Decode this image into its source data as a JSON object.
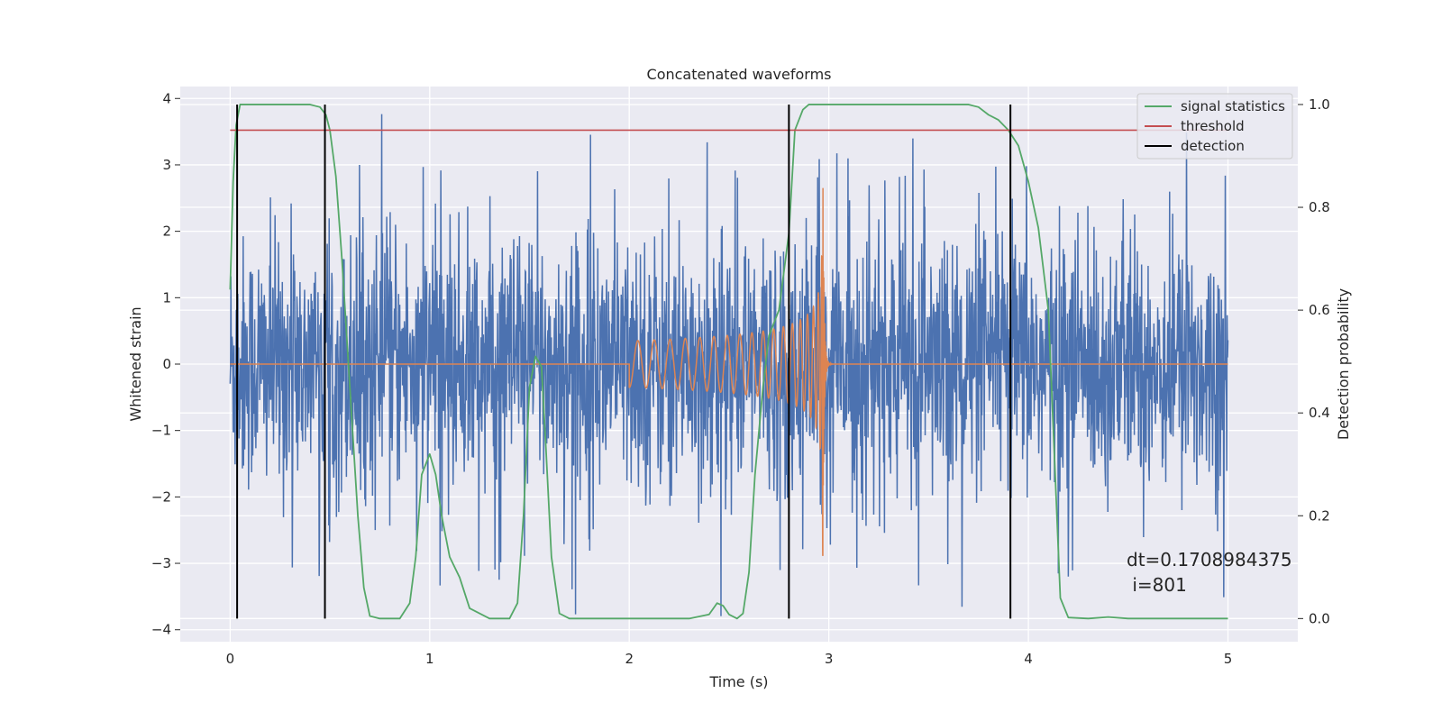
{
  "chart_data": {
    "type": "line",
    "title": "Concatenated waveforms",
    "xlabel": "Time (s)",
    "ylabel": "Whitened strain",
    "y2label": "Detection probability",
    "xlim": [
      -0.25,
      5.35
    ],
    "ylim": [
      -4.18,
      4.18
    ],
    "y2lim": [
      -0.045,
      1.035
    ],
    "xticks": [
      0,
      1,
      2,
      3,
      4,
      5
    ],
    "yticks": [
      -4,
      -3,
      -2,
      -1,
      0,
      1,
      2,
      3,
      4
    ],
    "y2ticks": [
      0.0,
      0.2,
      0.4,
      0.6,
      0.8,
      1.0
    ],
    "y2ticklabels": [
      "0.0",
      "0.2",
      "0.4",
      "0.6",
      "0.8",
      "1.0"
    ],
    "grid": true,
    "legend_position": "top-right",
    "series": [
      {
        "name": "",
        "axis": "left",
        "color": "#4c72b0",
        "kind": "noise",
        "x_range": [
          0,
          5
        ],
        "typical_range": [
          -2.4,
          2.4
        ],
        "max": 3.8,
        "min": -3.85
      },
      {
        "name": "",
        "axis": "left",
        "color": "#dd8452",
        "kind": "chirp",
        "flat_value": 0,
        "chirp_start": 2.0,
        "merger": 2.97,
        "amplitude_start": 0.35,
        "amplitude_max": 3.0
      },
      {
        "name": "signal statistics",
        "axis": "right",
        "color": "#55a868",
        "x": [
          0,
          0.015,
          0.03,
          0.05,
          0.08,
          0.12,
          0.2,
          0.3,
          0.4,
          0.45,
          0.48,
          0.5,
          0.53,
          0.56,
          0.6,
          0.64,
          0.67,
          0.7,
          0.75,
          0.85,
          0.9,
          0.93,
          0.96,
          1.0,
          1.03,
          1.06,
          1.1,
          1.15,
          1.2,
          1.3,
          1.4,
          1.44,
          1.47,
          1.5,
          1.53,
          1.56,
          1.58,
          1.61,
          1.65,
          1.7,
          1.8,
          2.0,
          2.3,
          2.4,
          2.44,
          2.47,
          2.5,
          2.54,
          2.57,
          2.6,
          2.63,
          2.67,
          2.7,
          2.75,
          2.8,
          2.83,
          2.87,
          2.9,
          3.0,
          3.5,
          3.7,
          3.75,
          3.8,
          3.85,
          3.9,
          3.95,
          4.0,
          4.05,
          4.1,
          4.13,
          4.16,
          4.2,
          4.3,
          4.4,
          4.5,
          5.0
        ],
        "y": [
          0.64,
          0.85,
          0.96,
          1.0,
          1.0,
          1.0,
          1.0,
          1.0,
          1.0,
          0.995,
          0.98,
          0.95,
          0.86,
          0.7,
          0.45,
          0.2,
          0.06,
          0.005,
          0.0,
          0.0,
          0.03,
          0.12,
          0.28,
          0.32,
          0.28,
          0.2,
          0.12,
          0.08,
          0.02,
          0.0,
          0.0,
          0.03,
          0.2,
          0.45,
          0.51,
          0.49,
          0.35,
          0.12,
          0.01,
          0.0,
          0.0,
          0.0,
          0.0,
          0.008,
          0.03,
          0.025,
          0.008,
          0.0,
          0.01,
          0.09,
          0.28,
          0.45,
          0.55,
          0.6,
          0.75,
          0.95,
          0.99,
          1.0,
          1.0,
          1.0,
          1.0,
          0.995,
          0.98,
          0.97,
          0.95,
          0.92,
          0.85,
          0.76,
          0.6,
          0.32,
          0.04,
          0.002,
          0.0,
          0.003,
          0.0,
          0.0
        ]
      },
      {
        "name": "threshold",
        "axis": "right",
        "color": "#c44e52",
        "x": [
          0,
          5
        ],
        "y": [
          0.95,
          0.95
        ]
      },
      {
        "name": "detection",
        "axis": "right",
        "color": "#000000",
        "kind": "vertical-lines",
        "x": [
          0.035,
          0.475,
          2.8,
          3.91
        ],
        "y_range": [
          0.0,
          1.0
        ]
      }
    ],
    "annotation": "dt=0.1708984375\n i=801"
  }
}
